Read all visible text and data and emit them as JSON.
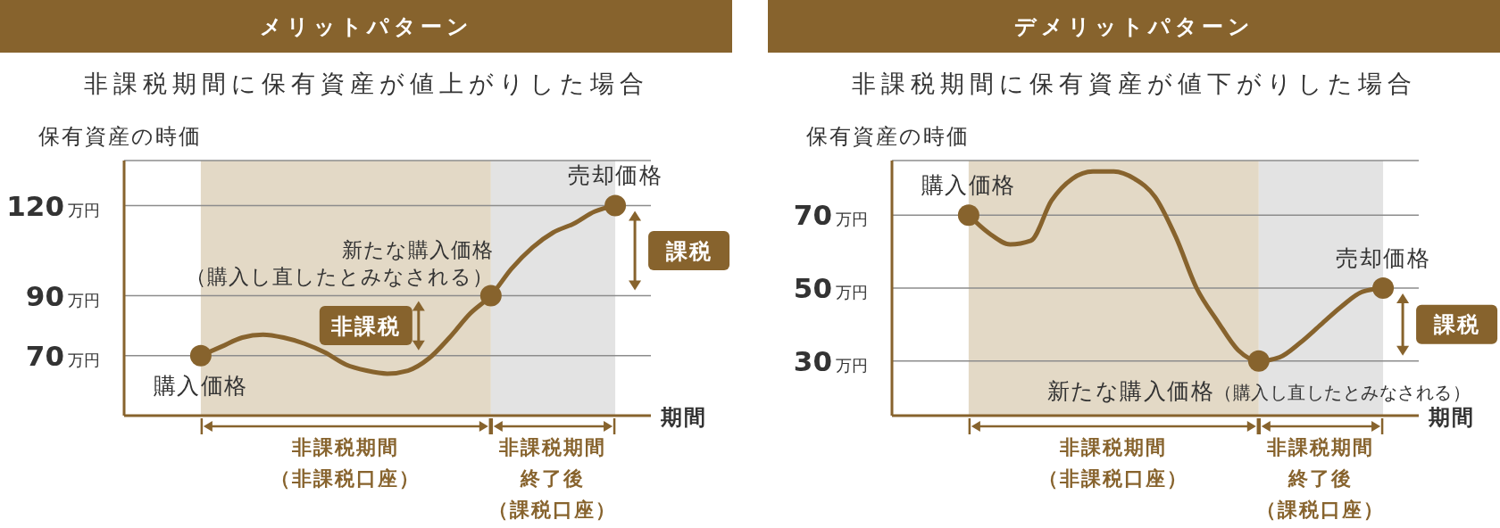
{
  "chart_data": [
    {
      "type": "line",
      "title": "メリットパターン",
      "subtitle": "非課税期間に保有資産が値上がりした場合",
      "xlabel": "期間",
      "ylabel": "保有資産の時価",
      "tick_labels": "y",
      "categories": [
        null,
        null,
        null,
        null,
        null,
        null,
        null,
        null,
        null,
        null,
        null,
        null,
        null,
        null,
        null,
        null,
        null,
        null,
        null,
        null,
        null
      ],
      "series": [
        {
          "type": "line",
          "color": "#87632d",
          "values": [
            70,
            73,
            76,
            77,
            76,
            74,
            71,
            67,
            65,
            64,
            65,
            69,
            76,
            84,
            90,
            99,
            106,
            111,
            114,
            118,
            120
          ]
        },
        {
          "type": "scatter",
          "color": "#87632d",
          "marker": "circle",
          "values": [
            70,
            null,
            null,
            null,
            null,
            null,
            null,
            null,
            null,
            null,
            null,
            null,
            null,
            null,
            90,
            null,
            null,
            null,
            null,
            null,
            120
          ]
        }
      ],
      "ylim": [
        50,
        135
      ],
      "yticks": [
        {
          "value": 70,
          "label": "70万円"
        },
        {
          "value": 90,
          "label": "90万円"
        },
        {
          "value": 120,
          "label": "120万円"
        }
      ],
      "grid": "y",
      "annotations": [
        "購入価格",
        "新たな購入価格（購入し直したとみなされる）",
        "売却価格",
        "非課税",
        "課税",
        "非課税期間（非課税口座）",
        "非課税期間終了後（課税口座）"
      ]
    },
    {
      "type": "line",
      "title": "デメリットパターン",
      "subtitle": "非課税期間に保有資産が値下がりした場合",
      "xlabel": "期間",
      "ylabel": "保有資産の時価",
      "tick_labels": "y",
      "categories": [
        null,
        null,
        null,
        null,
        null,
        null,
        null,
        null,
        null,
        null,
        null,
        null,
        null,
        null,
        null,
        null,
        null,
        null,
        null,
        null,
        null
      ],
      "series": [
        {
          "type": "line",
          "color": "#87632d",
          "values": [
            70,
            65,
            62,
            63,
            74,
            80,
            82,
            82,
            80,
            75,
            64,
            50,
            41,
            33,
            30,
            31,
            35,
            40,
            45,
            49,
            50
          ]
        },
        {
          "type": "scatter",
          "color": "#87632d",
          "marker": "circle",
          "values": [
            70,
            null,
            null,
            null,
            null,
            null,
            null,
            null,
            null,
            null,
            null,
            null,
            null,
            null,
            30,
            null,
            null,
            null,
            null,
            null,
            50
          ]
        }
      ],
      "ylim": [
        15,
        85
      ],
      "yticks": [
        {
          "value": 30,
          "label": "30万円"
        },
        {
          "value": 50,
          "label": "50万円"
        },
        {
          "value": 70,
          "label": "70万円"
        }
      ],
      "grid": "y",
      "annotations": [
        "購入価格",
        "新たな購入価格（購入し直したとみなされる）",
        "売却価格",
        "課税",
        "非課税期間（非課税口座）",
        "非課税期間終了後（課税口座）"
      ]
    }
  ]
}
